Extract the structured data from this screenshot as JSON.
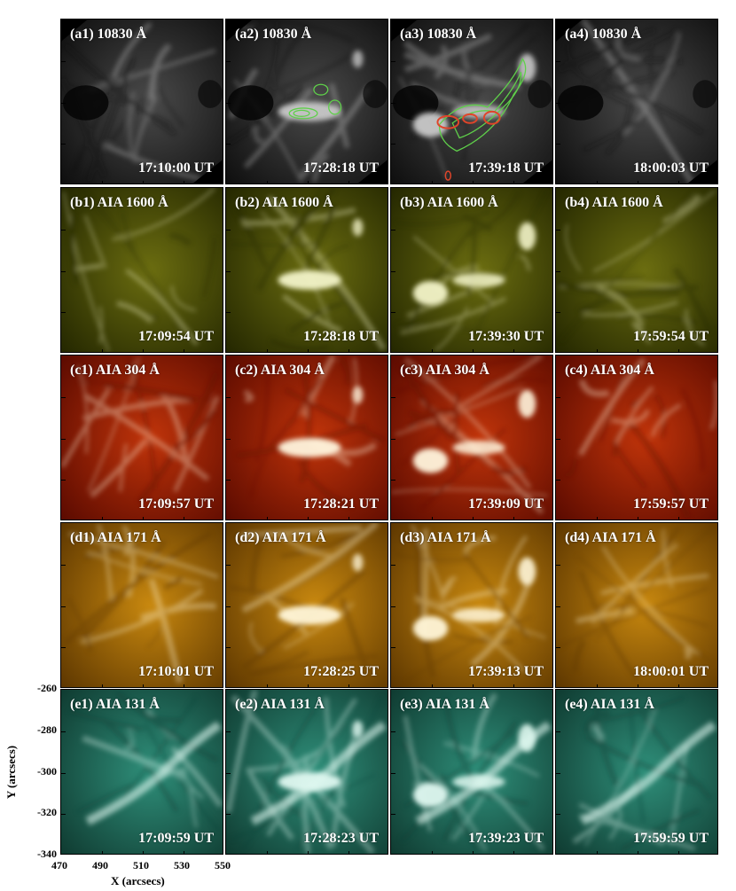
{
  "axes": {
    "x_label": "X (arcsecs)",
    "y_label": "Y (arcsecs)",
    "x_ticks": [
      "470",
      "490",
      "510",
      "530",
      "550"
    ],
    "y_ticks": [
      "-260",
      "-280",
      "-300",
      "-320",
      "-340"
    ]
  },
  "rows": [
    {
      "id": "a",
      "colors": {
        "dark": "#0d0d0d",
        "mid": "#4a4a4a",
        "bright": "#c8c8c8"
      },
      "panels": [
        {
          "label": "(a1) 10830 Å",
          "time": "17:10:00 UT"
        },
        {
          "label": "(a2) 10830 Å",
          "time": "17:28:18 UT"
        },
        {
          "label": "(a3) 10830 Å",
          "time": "17:39:18 UT"
        },
        {
          "label": "(a4) 10830 Å",
          "time": "18:00:03 UT"
        }
      ]
    },
    {
      "id": "b",
      "colors": {
        "dark": "#232600",
        "mid": "#6b6d10",
        "bright": "#f2f3c8"
      },
      "panels": [
        {
          "label": "(b1) AIA 1600 Å",
          "time": "17:09:54 UT"
        },
        {
          "label": "(b2) AIA 1600 Å",
          "time": "17:28:18 UT"
        },
        {
          "label": "(b3) AIA 1600 Å",
          "time": "17:39:30 UT"
        },
        {
          "label": "(b4) AIA 1600 Å",
          "time": "17:59:54 UT"
        }
      ]
    },
    {
      "id": "c",
      "colors": {
        "dark": "#5a0a00",
        "mid": "#c0340a",
        "bright": "#fff4dc"
      },
      "panels": [
        {
          "label": "(c1) AIA 304 Å",
          "time": "17:09:57 UT"
        },
        {
          "label": "(c2) AIA 304 Å",
          "time": "17:28:21 UT"
        },
        {
          "label": "(c3) AIA 304 Å",
          "time": "17:39:09 UT"
        },
        {
          "label": "(c4) AIA 304 Å",
          "time": "17:59:57 UT"
        }
      ]
    },
    {
      "id": "d",
      "colors": {
        "dark": "#5c3600",
        "mid": "#c8880f",
        "bright": "#fff6d8"
      },
      "panels": [
        {
          "label": "(d1) AIA 171 Å",
          "time": "17:10:01 UT"
        },
        {
          "label": "(d2) AIA 171 Å",
          "time": "17:28:25 UT"
        },
        {
          "label": "(d3) AIA 171 Å",
          "time": "17:39:13 UT"
        },
        {
          "label": "(d4) AIA 171 Å",
          "time": "18:00:01 UT"
        }
      ]
    },
    {
      "id": "e",
      "colors": {
        "dark": "#0f3a30",
        "mid": "#2f8f7a",
        "bright": "#dff8f0"
      },
      "panels": [
        {
          "label": "(e1) AIA 131 Å",
          "time": "17:09:59 UT"
        },
        {
          "label": "(e2) AIA 131 Å",
          "time": "17:28:23 UT"
        },
        {
          "label": "(e3) AIA 131 Å",
          "time": "17:39:23 UT"
        },
        {
          "label": "(e4) AIA 131 Å",
          "time": "17:59:59 UT"
        }
      ]
    }
  ],
  "contour_colors": {
    "green": "#5fd04a",
    "red": "#e0452a"
  }
}
